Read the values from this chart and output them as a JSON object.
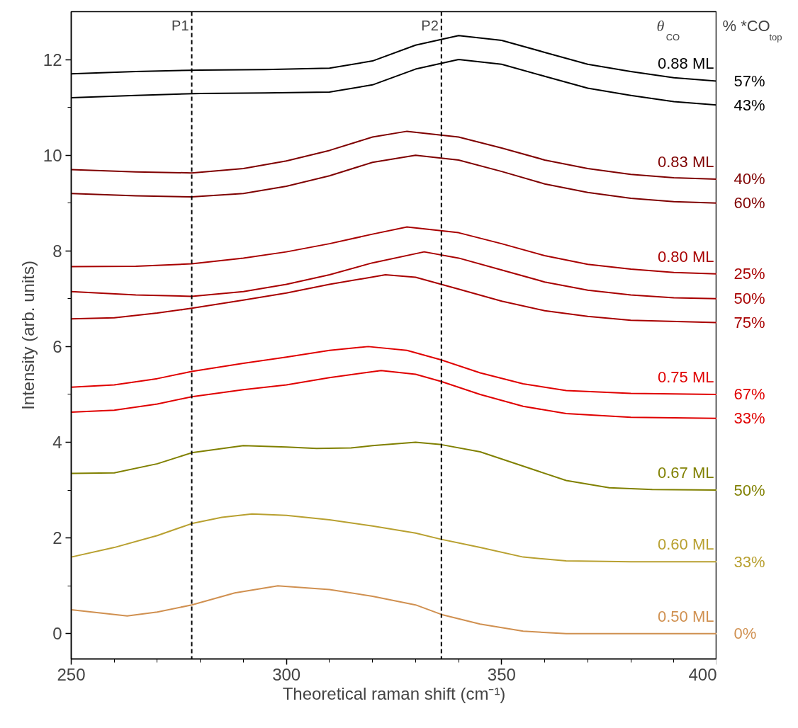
{
  "chart_data": {
    "type": "line",
    "xlabel": "Theoretical raman shift (cm⁻¹)",
    "ylabel": "Intensity (arb. units)",
    "xlim": [
      250,
      400
    ],
    "xticks": [
      250,
      300,
      350,
      400
    ],
    "ylim": [
      -0.53,
      13.0
    ],
    "yticks": [
      0,
      2,
      4,
      6,
      8,
      10,
      12
    ],
    "grid": false,
    "marker": "none",
    "line_style": "solid",
    "ref_lines": [
      {
        "axis": "x",
        "value": 278,
        "label": "P1",
        "color": "#000000",
        "line_style": "dashed"
      },
      {
        "axis": "x",
        "value": 336,
        "label": "P2",
        "color": "#000000",
        "line_style": "dashed"
      }
    ],
    "annotations": [
      "θ$_{CO}$",
      "% *CO$_{top}$",
      {
        "text": "0.88 ML",
        "y": 11.55
      },
      {
        "text": "0.83 ML",
        "y": 9.5
      },
      {
        "text": "0.80 ML",
        "y": 7.52
      },
      {
        "text": "0.75 ML",
        "y": 5.0
      },
      {
        "text": "0.67 ML",
        "y": 3.0
      },
      {
        "text": "0.60 ML",
        "y": 1.5
      },
      {
        "text": "0.50 ML",
        "y": 0.0
      }
    ],
    "series": [
      {
        "name": "57%",
        "color": "#000000",
        "x": [
          250,
          265,
          280,
          295,
          310,
          320,
          330,
          340,
          350,
          360,
          370,
          380,
          390,
          400
        ],
        "values": [
          11.7,
          11.75,
          11.78,
          11.79,
          11.82,
          11.97,
          12.3,
          12.5,
          12.4,
          12.15,
          11.9,
          11.75,
          11.62,
          11.55
        ]
      },
      {
        "name": "43%",
        "color": "#000000",
        "x": [
          250,
          265,
          280,
          295,
          310,
          320,
          330,
          340,
          350,
          360,
          370,
          380,
          390,
          400
        ],
        "values": [
          11.2,
          11.25,
          11.29,
          11.3,
          11.32,
          11.47,
          11.8,
          12.0,
          11.9,
          11.65,
          11.4,
          11.25,
          11.12,
          11.05
        ]
      },
      {
        "name": "40%",
        "color": "#7f0000",
        "x": [
          250,
          265,
          278,
          290,
          300,
          310,
          320,
          328,
          340,
          350,
          360,
          370,
          380,
          390,
          400
        ],
        "values": [
          9.7,
          9.65,
          9.63,
          9.72,
          9.88,
          10.1,
          10.38,
          10.5,
          10.38,
          10.15,
          9.9,
          9.72,
          9.6,
          9.53,
          9.5
        ]
      },
      {
        "name": "60%",
        "color": "#7f0000",
        "x": [
          250,
          265,
          278,
          290,
          300,
          310,
          320,
          330,
          340,
          350,
          360,
          370,
          380,
          390,
          400
        ],
        "values": [
          9.2,
          9.15,
          9.13,
          9.2,
          9.35,
          9.57,
          9.85,
          10.0,
          9.9,
          9.66,
          9.4,
          9.22,
          9.1,
          9.03,
          9.0
        ]
      },
      {
        "name": "25%",
        "color": "#a80000",
        "x": [
          250,
          265,
          278,
          290,
          300,
          310,
          320,
          328,
          340,
          350,
          360,
          370,
          380,
          390,
          400
        ],
        "values": [
          7.67,
          7.68,
          7.73,
          7.85,
          7.98,
          8.15,
          8.35,
          8.5,
          8.38,
          8.15,
          7.9,
          7.72,
          7.62,
          7.55,
          7.52
        ]
      },
      {
        "name": "50%",
        "color": "#a80000",
        "x": [
          250,
          265,
          278,
          290,
          300,
          310,
          320,
          332,
          340,
          350,
          360,
          370,
          380,
          390,
          400
        ],
        "values": [
          7.15,
          7.08,
          7.05,
          7.15,
          7.3,
          7.5,
          7.75,
          7.98,
          7.85,
          7.6,
          7.35,
          7.18,
          7.08,
          7.02,
          7.0
        ]
      },
      {
        "name": "75%",
        "color": "#a80000",
        "x": [
          250,
          260,
          270,
          278,
          290,
          300,
          310,
          323,
          330,
          340,
          350,
          360,
          370,
          380,
          400
        ],
        "values": [
          6.58,
          6.6,
          6.7,
          6.8,
          6.97,
          7.12,
          7.3,
          7.5,
          7.45,
          7.2,
          6.95,
          6.75,
          6.63,
          6.55,
          6.5
        ]
      },
      {
        "name": "67%",
        "color": "#e00000",
        "x": [
          250,
          260,
          270,
          278,
          290,
          300,
          310,
          319,
          328,
          336,
          345,
          355,
          365,
          380,
          400
        ],
        "values": [
          5.15,
          5.2,
          5.33,
          5.48,
          5.65,
          5.78,
          5.92,
          6.0,
          5.92,
          5.72,
          5.45,
          5.22,
          5.08,
          5.02,
          5.0
        ]
      },
      {
        "name": "33%",
        "color": "#e00000",
        "x": [
          250,
          260,
          270,
          278,
          290,
          300,
          310,
          322,
          330,
          336,
          345,
          355,
          365,
          380,
          400
        ],
        "values": [
          4.63,
          4.67,
          4.8,
          4.95,
          5.1,
          5.2,
          5.35,
          5.5,
          5.42,
          5.27,
          5.0,
          4.75,
          4.6,
          4.52,
          4.5
        ]
      },
      {
        "name": "50%",
        "color": "#808000",
        "x": [
          250,
          260,
          270,
          278,
          290,
          300,
          307,
          315,
          320,
          330,
          336,
          345,
          355,
          365,
          375,
          385,
          400
        ],
        "values": [
          3.35,
          3.36,
          3.55,
          3.78,
          3.93,
          3.9,
          3.87,
          3.88,
          3.93,
          4.0,
          3.95,
          3.8,
          3.5,
          3.2,
          3.05,
          3.01,
          3.0
        ]
      },
      {
        "name": "33%",
        "color": "#b8a030",
        "x": [
          250,
          260,
          270,
          278,
          285,
          292,
          300,
          310,
          320,
          330,
          336,
          345,
          355,
          365,
          380,
          400
        ],
        "values": [
          1.6,
          1.8,
          2.05,
          2.3,
          2.43,
          2.5,
          2.47,
          2.38,
          2.25,
          2.1,
          1.97,
          1.8,
          1.6,
          1.52,
          1.5,
          1.5
        ]
      },
      {
        "name": "0%",
        "color": "#d09050",
        "x": [
          250,
          263,
          270,
          278,
          288,
          298,
          310,
          320,
          330,
          336,
          345,
          355,
          365,
          400
        ],
        "values": [
          0.5,
          0.37,
          0.45,
          0.6,
          0.85,
          1.0,
          0.92,
          0.78,
          0.6,
          0.4,
          0.2,
          0.05,
          0.0,
          0.0
        ]
      }
    ]
  }
}
